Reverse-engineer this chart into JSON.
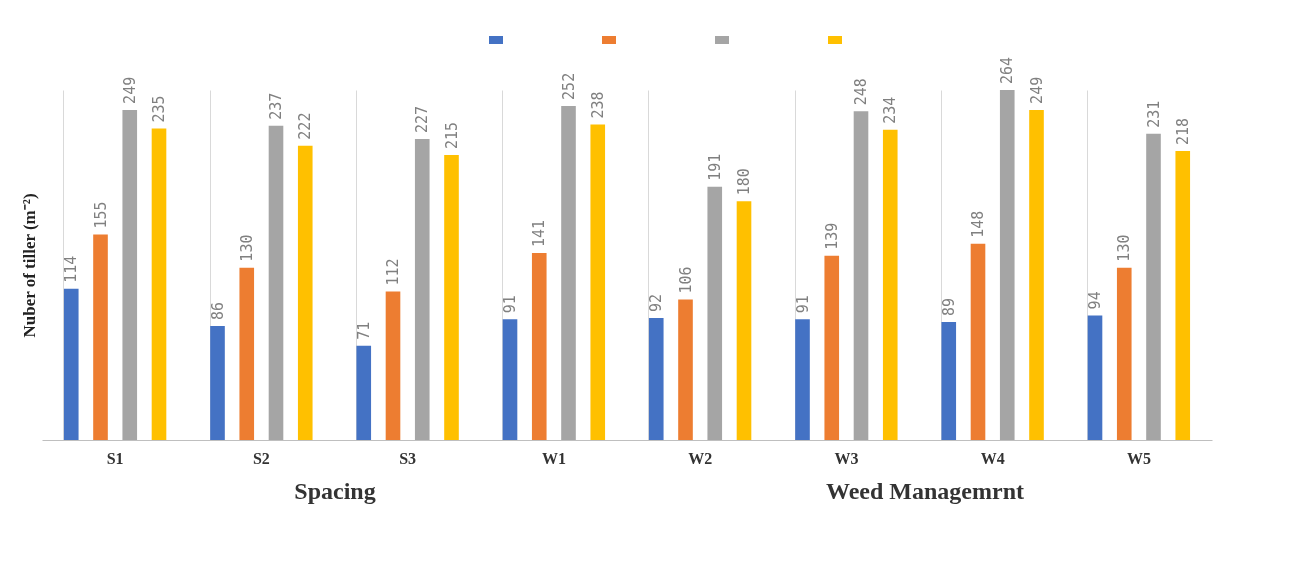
{
  "chart_data": {
    "type": "bar",
    "ylabel": "Nuber of tiller (m⁻²)",
    "categories": [
      "S1",
      "S2",
      "S3",
      "W1",
      "W2",
      "W3",
      "W4",
      "W5"
    ],
    "series": [
      {
        "color": "#4472c4",
        "values": [
          114,
          86,
          71,
          91,
          92,
          91,
          89,
          94
        ]
      },
      {
        "color": "#ed7d31",
        "values": [
          155,
          130,
          112,
          141,
          106,
          139,
          148,
          130
        ]
      },
      {
        "color": "#a5a5a5",
        "values": [
          249,
          237,
          227,
          252,
          191,
          248,
          264,
          231
        ]
      },
      {
        "color": "#ffc000",
        "values": [
          235,
          222,
          215,
          238,
          180,
          234,
          249,
          218
        ]
      }
    ],
    "data_labels": true,
    "grid": "x",
    "tick_labels": "x",
    "annotations": [
      "Spacing",
      "Weed Managemrnt"
    ]
  }
}
